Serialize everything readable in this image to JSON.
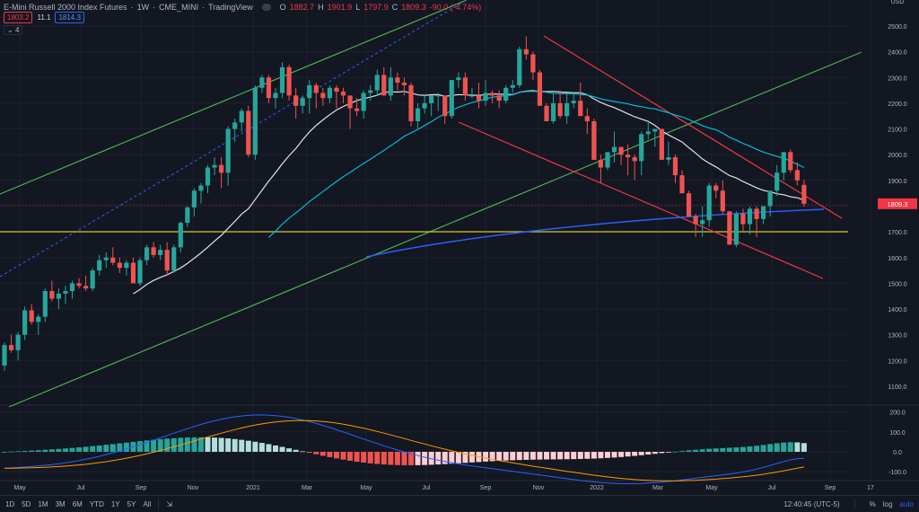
{
  "header": {
    "symbol_title": "E-Mini Russell 2000 Index Futures",
    "interval": "1W",
    "exchange": "CME_MINI",
    "source": "TradingView",
    "ohlc": {
      "o_label": "O",
      "o": "1882.7",
      "h_label": "H",
      "h": "1901.9",
      "l_label": "L",
      "l": "1797.9",
      "c_label": "C",
      "c": "1809.3",
      "change": "-90.0 (-4.74%)"
    },
    "indicator_values": {
      "bid": "1803.2",
      "spread": "11.1",
      "ask": "1814.3"
    },
    "collapsed_indicators": "4"
  },
  "price_axis": {
    "currency": "USD",
    "ticks": [
      "2500.0",
      "2400.0",
      "2300.0",
      "2200.0",
      "2100.0",
      "2000.0",
      "1900.0",
      "1800.0",
      "1700.0",
      "1600.0",
      "1500.0",
      "1400.0",
      "1300.0",
      "1200.0",
      "1100.0"
    ],
    "last_price_label": "1809.3",
    "last_price_color": "#f23645"
  },
  "macd_axis": {
    "ticks": [
      "200.0",
      "100.0",
      "0.0",
      "-100.0"
    ]
  },
  "time_axis": {
    "ticks": [
      "May",
      "Jul",
      "Sep",
      "Nov",
      "2021",
      "Mar",
      "May",
      "Jul",
      "Sep",
      "Nov",
      "2022",
      "Mar",
      "May",
      "Jul",
      "Sep",
      "17"
    ]
  },
  "bottom_bar": {
    "ranges": [
      "1D",
      "5D",
      "1M",
      "3M",
      "6M",
      "YTD",
      "1Y",
      "5Y",
      "All"
    ],
    "time": "12:40:45 (UTC-5)",
    "percent": "%",
    "log": "log",
    "auto": "auto"
  },
  "colors": {
    "background": "#131722",
    "up": "#26a69a",
    "down": "#ef5350",
    "ma20": "#e0e3eb",
    "ma50": "#00bcd4",
    "ma200": "#2962ff",
    "support": "#d4c52a",
    "channel": "#4caf50",
    "trend": "#f23645"
  },
  "chart_data": {
    "type": "candlestick",
    "title": "E-Mini Russell 2000 Index Futures · 1W · CME_MINI",
    "xlabel": "",
    "ylabel": "USD",
    "ylim": [
      1050,
      2560
    ],
    "grid": true,
    "x_ticks": [
      "May 2020",
      "Jul",
      "Sep",
      "Nov",
      "2021",
      "Mar",
      "May",
      "Jul",
      "Sep",
      "Nov",
      "2022",
      "Mar",
      "May",
      "Jul",
      "Sep",
      "17"
    ],
    "candles": [
      [
        1180,
        1270,
        1160,
        1260
      ],
      [
        1260,
        1300,
        1230,
        1240
      ],
      [
        1240,
        1310,
        1200,
        1300
      ],
      [
        1300,
        1410,
        1280,
        1395
      ],
      [
        1395,
        1420,
        1340,
        1350
      ],
      [
        1350,
        1380,
        1300,
        1370
      ],
      [
        1370,
        1480,
        1350,
        1470
      ],
      [
        1470,
        1510,
        1430,
        1440
      ],
      [
        1440,
        1480,
        1400,
        1460
      ],
      [
        1460,
        1490,
        1420,
        1470
      ],
      [
        1470,
        1510,
        1440,
        1500
      ],
      [
        1500,
        1520,
        1480,
        1490
      ],
      [
        1490,
        1530,
        1470,
        1480
      ],
      [
        1480,
        1560,
        1470,
        1550
      ],
      [
        1550,
        1610,
        1530,
        1590
      ],
      [
        1590,
        1620,
        1560,
        1600
      ],
      [
        1600,
        1640,
        1570,
        1580
      ],
      [
        1580,
        1600,
        1540,
        1560
      ],
      [
        1560,
        1590,
        1530,
        1580
      ],
      [
        1580,
        1600,
        1530,
        1500
      ],
      [
        1500,
        1600,
        1490,
        1590
      ],
      [
        1590,
        1650,
        1570,
        1640
      ],
      [
        1640,
        1660,
        1600,
        1610
      ],
      [
        1610,
        1650,
        1590,
        1630
      ],
      [
        1630,
        1660,
        1530,
        1550
      ],
      [
        1550,
        1650,
        1540,
        1640
      ],
      [
        1640,
        1740,
        1620,
        1735
      ],
      [
        1735,
        1800,
        1720,
        1795
      ],
      [
        1795,
        1870,
        1760,
        1860
      ],
      [
        1860,
        1890,
        1810,
        1880
      ],
      [
        1880,
        1960,
        1850,
        1950
      ],
      [
        1950,
        1990,
        1920,
        1960
      ],
      [
        1960,
        1990,
        1870,
        1930
      ],
      [
        1930,
        2110,
        1880,
        2100
      ],
      [
        2100,
        2140,
        2050,
        2125
      ],
      [
        2125,
        2180,
        2090,
        2170
      ],
      [
        2170,
        2190,
        1990,
        2000
      ],
      [
        2000,
        2270,
        1980,
        2260
      ],
      [
        2260,
        2310,
        2240,
        2300
      ],
      [
        2300,
        2310,
        2200,
        2220
      ],
      [
        2220,
        2260,
        2180,
        2240
      ],
      [
        2240,
        2360,
        2220,
        2340
      ],
      [
        2340,
        2350,
        2210,
        2230
      ],
      [
        2230,
        2260,
        2140,
        2190
      ],
      [
        2190,
        2230,
        2160,
        2220
      ],
      [
        2220,
        2290,
        2160,
        2270
      ],
      [
        2270,
        2280,
        2180,
        2240
      ],
      [
        2240,
        2260,
        2190,
        2220
      ],
      [
        2220,
        2270,
        2200,
        2260
      ],
      [
        2260,
        2270,
        2180,
        2245
      ],
      [
        2245,
        2260,
        2200,
        2230
      ],
      [
        2230,
        2230,
        2100,
        2180
      ],
      [
        2180,
        2220,
        2150,
        2170
      ],
      [
        2170,
        2250,
        2140,
        2240
      ],
      [
        2240,
        2270,
        2210,
        2250
      ],
      [
        2250,
        2330,
        2230,
        2310
      ],
      [
        2310,
        2340,
        2230,
        2230
      ],
      [
        2230,
        2340,
        2210,
        2300
      ],
      [
        2300,
        2320,
        2250,
        2280
      ],
      [
        2280,
        2300,
        2230,
        2270
      ],
      [
        2270,
        2280,
        2110,
        2130
      ],
      [
        2130,
        2200,
        2100,
        2180
      ],
      [
        2180,
        2230,
        2160,
        2200
      ],
      [
        2200,
        2220,
        2150,
        2230
      ],
      [
        2230,
        2240,
        2170,
        2230
      ],
      [
        2230,
        2230,
        2120,
        2150
      ],
      [
        2150,
        2290,
        2140,
        2290
      ],
      [
        2290,
        2320,
        2260,
        2300
      ],
      [
        2300,
        2320,
        2210,
        2230
      ],
      [
        2230,
        2260,
        2220,
        2230
      ],
      [
        2230,
        2280,
        2180,
        2210
      ],
      [
        2210,
        2290,
        2190,
        2240
      ],
      [
        2240,
        2250,
        2200,
        2230
      ],
      [
        2230,
        2250,
        2180,
        2210
      ],
      [
        2210,
        2270,
        2200,
        2260
      ],
      [
        2260,
        2290,
        2240,
        2270
      ],
      [
        2270,
        2420,
        2260,
        2410
      ],
      [
        2410,
        2460,
        2370,
        2390
      ],
      [
        2390,
        2400,
        2290,
        2320
      ],
      [
        2320,
        2330,
        2200,
        2190
      ],
      [
        2190,
        2200,
        2130,
        2130
      ],
      [
        2130,
        2240,
        2120,
        2200
      ],
      [
        2200,
        2250,
        2140,
        2150
      ],
      [
        2150,
        2240,
        2120,
        2200
      ],
      [
        2200,
        2240,
        2180,
        2210
      ],
      [
        2210,
        2280,
        2170,
        2150
      ],
      [
        2150,
        2180,
        2080,
        2130
      ],
      [
        2130,
        2140,
        1980,
        1980
      ],
      [
        1980,
        2000,
        1890,
        1950
      ],
      [
        1950,
        2000,
        1940,
        2010
      ],
      [
        2010,
        2090,
        1970,
        2030
      ],
      [
        2030,
        2030,
        1960,
        2000
      ],
      [
        2000,
        2040,
        1920,
        1990
      ],
      [
        1990,
        2000,
        1900,
        1975
      ],
      [
        1975,
        2090,
        1920,
        2080
      ],
      [
        2080,
        2130,
        2060,
        2090
      ],
      [
        2090,
        2100,
        2030,
        2100
      ],
      [
        2100,
        2100,
        1990,
        1980
      ],
      [
        1980,
        2050,
        1960,
        1990
      ],
      [
        1990,
        2000,
        1890,
        1920
      ],
      [
        1920,
        1940,
        1850,
        1850
      ],
      [
        1850,
        1860,
        1770,
        1760
      ],
      [
        1760,
        1770,
        1680,
        1730
      ],
      [
        1730,
        1800,
        1680,
        1745
      ],
      [
        1745,
        1890,
        1720,
        1880
      ],
      [
        1880,
        1890,
        1830,
        1860
      ],
      [
        1860,
        1900,
        1770,
        1780
      ],
      [
        1780,
        1780,
        1650,
        1650
      ],
      [
        1650,
        1780,
        1640,
        1770
      ],
      [
        1770,
        1790,
        1700,
        1730
      ],
      [
        1730,
        1800,
        1690,
        1790
      ],
      [
        1790,
        1800,
        1680,
        1750
      ],
      [
        1750,
        1800,
        1730,
        1800
      ],
      [
        1800,
        1860,
        1760,
        1860
      ],
      [
        1860,
        1960,
        1840,
        1930
      ],
      [
        1930,
        2000,
        1900,
        2010
      ],
      [
        2010,
        2020,
        1930,
        1940
      ],
      [
        1940,
        1970,
        1880,
        1900
      ],
      [
        1882.7,
        1901.9,
        1797.9,
        1809.3
      ]
    ],
    "overlays": [
      {
        "name": "SMA 20",
        "color": "#e0e3eb"
      },
      {
        "name": "SMA 50",
        "color": "#00bcd4"
      },
      {
        "name": "SMA 200",
        "color": "#2962ff"
      },
      {
        "name": "Horizontal support",
        "color": "#d4c52a",
        "value": 1700
      },
      {
        "name": "Ascending channel (upper/lower)",
        "color": "#4caf50"
      },
      {
        "name": "Descending channel",
        "color": "#f23645"
      }
    ],
    "macd": {
      "ylim": [
        -140,
        220
      ],
      "ticks": [
        200,
        100,
        0,
        -100
      ],
      "macd_peak": 185,
      "signal_peak": 165,
      "last_macd": -30,
      "last_signal": -55,
      "last_hist": 25
    }
  }
}
